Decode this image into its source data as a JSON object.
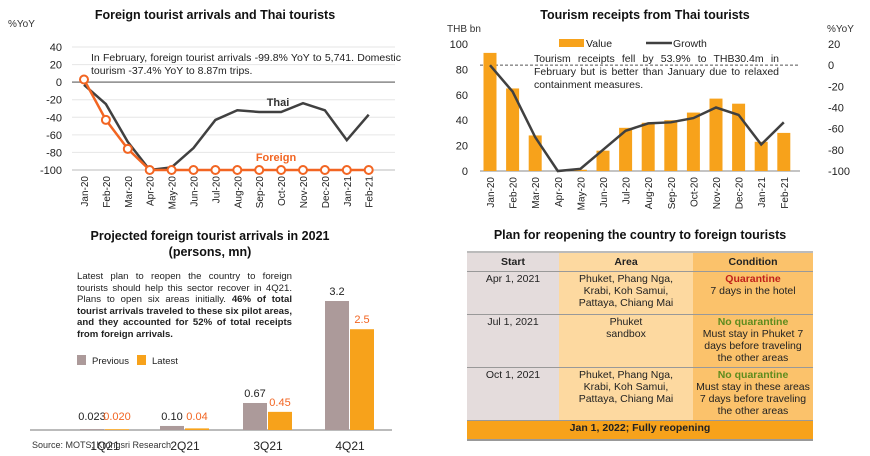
{
  "chart_data": [
    {
      "type": "line",
      "title": "Foreign tourist arrivals and Thai tourists",
      "ylabel": "%YoY",
      "ylim": [
        -100,
        40
      ],
      "yticks": [
        40,
        20,
        0,
        -20,
        -40,
        -60,
        -80,
        -100
      ],
      "categories": [
        "Jan-20",
        "Feb-20",
        "Mar-20",
        "Apr-20",
        "May-20",
        "Jun-20",
        "Jul-20",
        "Aug-20",
        "Sep-20",
        "Oct-20",
        "Nov-20",
        "Dec-20",
        "Jan-21",
        "Feb-21"
      ],
      "series": [
        {
          "name": "Thai",
          "color": "#404040",
          "values": [
            -3,
            -25,
            -68,
            -100,
            -97,
            -75,
            -43,
            -32,
            -34,
            -34,
            -24,
            -32,
            -66,
            -37
          ]
        },
        {
          "name": "Foreign",
          "color": "#f26522",
          "values": [
            3,
            -43,
            -76,
            -100,
            -100,
            -100,
            -100,
            -100,
            -100,
            -100,
            -100,
            -100,
            -100,
            -100
          ]
        }
      ],
      "annotation": "In February, foreign tourist arrivals -99.8% YoY to 5,741. Domestic tourism -37.4% YoY to 8.87m trips.",
      "grid": true
    },
    {
      "type": "bar",
      "title": "Tourism receipts from Thai tourists",
      "ylabel": "THB bn",
      "y2label": "%YoY",
      "ylim": [
        0,
        100
      ],
      "y2lim": [
        -100,
        20
      ],
      "yticks": [
        100,
        80,
        60,
        40,
        20,
        0
      ],
      "y2ticks": [
        20,
        0,
        -20,
        -40,
        -60,
        -80,
        -100
      ],
      "categories": [
        "Jan-20",
        "Feb-20",
        "Mar-20",
        "Apr-20",
        "May-20",
        "Jun-20",
        "Jul-20",
        "Aug-20",
        "Sep-20",
        "Oct-20",
        "Nov-20",
        "Dec-20",
        "Jan-21",
        "Feb-21"
      ],
      "series": [
        {
          "name": "Value",
          "axis": "left",
          "type": "bar",
          "color": "#f7a21b",
          "values": [
            93,
            65,
            28,
            0,
            1,
            16,
            34,
            38,
            40,
            46,
            57,
            53,
            23,
            30
          ]
        },
        {
          "name": "Growth",
          "axis": "right",
          "type": "line",
          "color": "#404040",
          "values": [
            0,
            -25,
            -68,
            -100,
            -98,
            -80,
            -62,
            -55,
            -54,
            -50,
            -40,
            -47,
            -75,
            -54
          ]
        }
      ],
      "legend": "top",
      "annotation": "Tourism receipts fell by 53.9% to THB30.4m in February but is better than January due to relaxed containment measures."
    },
    {
      "type": "bar",
      "title": "Projected foreign tourist arrivals in 2021 (persons, mn)",
      "categories": [
        "1Q21",
        "2Q21",
        "3Q21",
        "4Q21"
      ],
      "series": [
        {
          "name": "Previous",
          "color": "#ac9a9a",
          "values": [
            0.023,
            0.1,
            0.67,
            3.2
          ],
          "labels": [
            "0.023",
            "0.10",
            "0.67",
            "3.2"
          ]
        },
        {
          "name": "Latest",
          "color": "#f7a21b",
          "values": [
            0.02,
            0.04,
            0.45,
            2.5
          ],
          "labels": [
            "0.020",
            "0.04",
            "0.45",
            "2.5"
          ]
        }
      ],
      "ylim": [
        0,
        3.5
      ],
      "legend": "left",
      "annotation_plain": "Latest plan to reopen the country to foreign tourists should help this sector recover in 4Q21. Plans to open six areas initially. ",
      "annotation_bold": "46% of total tourist arrivals traveled to these six pilot areas, and they accounted for 52% of total receipts from foreign arrivals."
    }
  ],
  "titles": {
    "chart1": "Foreign tourist arrivals and Thai tourists",
    "chart2": "Tourism receipts from Thai tourists",
    "chart3_line1": "Projected foreign tourist arrivals in 2021",
    "chart3_line2": "(persons, mn)",
    "table": "Plan for reopening the country to foreign tourists"
  },
  "table": {
    "headers": [
      "Start",
      "Area",
      "Condition"
    ],
    "rows": [
      {
        "start": "Apr 1, 2021",
        "area": [
          "Phuket, Phang Nga,",
          "Krabi, Koh Samui,",
          "Pattaya, Chiang Mai"
        ],
        "status": "Quarantine",
        "status_color": "red",
        "detail": [
          "7 days in the hotel"
        ]
      },
      {
        "start": "Jul 1, 2021",
        "area": [
          "Phuket",
          "sandbox"
        ],
        "status": "No quarantine",
        "status_color": "green",
        "detail": [
          "Must stay in Phuket 7",
          "days before traveling",
          "the other areas"
        ]
      },
      {
        "start": "Oct 1, 2021",
        "area": [
          "Phuket, Phang Nga,",
          "Krabi, Koh Samui,",
          "Pattaya, Chiang Mai"
        ],
        "status": "No quarantine",
        "status_color": "green",
        "detail": [
          "Must stay in these areas",
          "7 days before traveling",
          "the other areas"
        ]
      }
    ],
    "footer": "Jan 1, 2022; Fully reopening"
  },
  "source": "Source: MOTS, Krungsri Research"
}
